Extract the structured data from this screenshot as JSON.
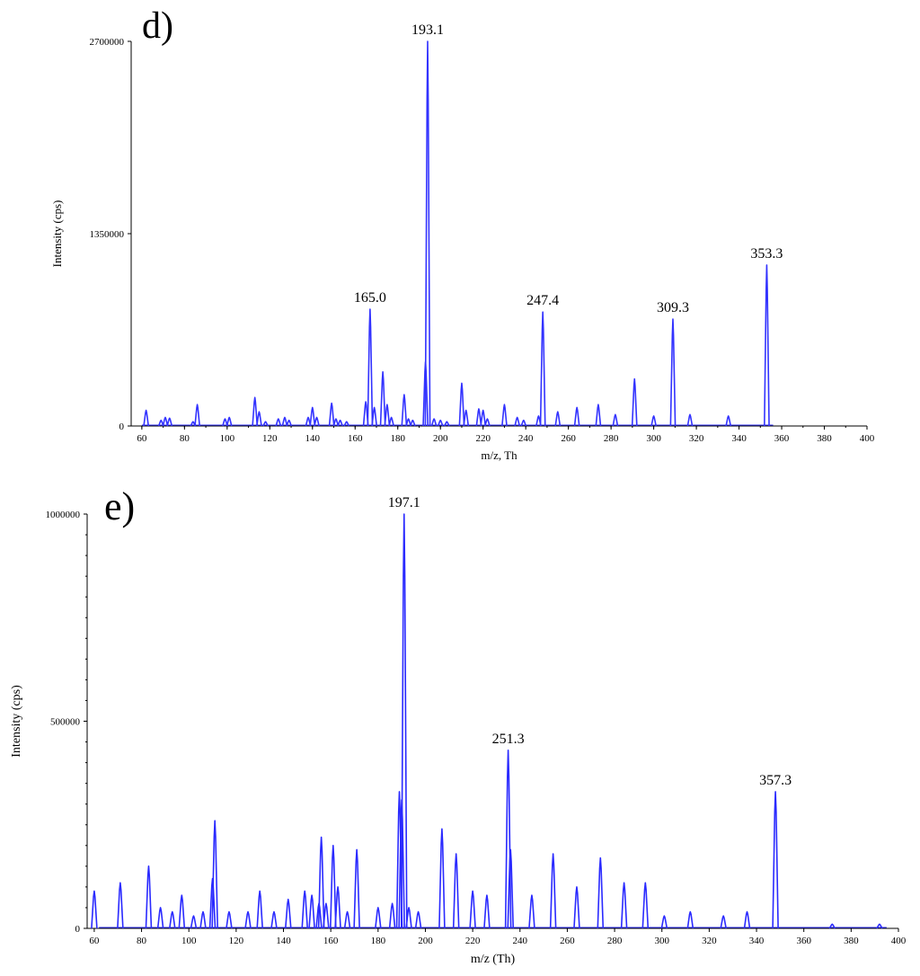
{
  "chart_data": [
    {
      "panel": "d)",
      "type": "line",
      "xlabel": "m/z, Th",
      "ylabel": "Intensity (cps)",
      "xlim": [
        55,
        400
      ],
      "ylim": [
        0,
        2700000
      ],
      "xticks": [
        60,
        80,
        100,
        120,
        140,
        160,
        180,
        200,
        220,
        240,
        260,
        280,
        300,
        320,
        340,
        360,
        380,
        400
      ],
      "yticks": [
        0,
        1350000,
        2700000
      ],
      "ytick_labels": [
        "0",
        "1350000",
        "2700000"
      ],
      "color": "#3333ff",
      "peaks": [
        [
          62,
          110000
        ],
        [
          69,
          40000
        ],
        [
          71,
          60000
        ],
        [
          73,
          55000
        ],
        [
          86,
          150000
        ],
        [
          84,
          30000
        ],
        [
          99,
          50000
        ],
        [
          101,
          60000
        ],
        [
          113,
          200000
        ],
        [
          115,
          100000
        ],
        [
          118,
          30000
        ],
        [
          124,
          50000
        ],
        [
          127,
          60000
        ],
        [
          129,
          40000
        ],
        [
          138,
          60000
        ],
        [
          140,
          130000
        ],
        [
          142,
          60000
        ],
        [
          149,
          160000
        ],
        [
          151,
          50000
        ],
        [
          153,
          40000
        ],
        [
          156,
          30000
        ],
        [
          165,
          170000
        ],
        [
          167,
          820000
        ],
        [
          169,
          130000
        ],
        [
          173,
          380000
        ],
        [
          175,
          150000
        ],
        [
          177,
          60000
        ],
        [
          183,
          220000
        ],
        [
          185,
          50000
        ],
        [
          187,
          40000
        ],
        [
          193,
          450000
        ],
        [
          194,
          2700000
        ],
        [
          197,
          50000
        ],
        [
          200,
          40000
        ],
        [
          203,
          30000
        ],
        [
          210,
          300000
        ],
        [
          212,
          110000
        ],
        [
          218,
          120000
        ],
        [
          220,
          110000
        ],
        [
          222,
          50000
        ],
        [
          230,
          150000
        ],
        [
          236,
          60000
        ],
        [
          239,
          40000
        ],
        [
          246,
          70000
        ],
        [
          248,
          800000
        ],
        [
          255,
          100000
        ],
        [
          264,
          130000
        ],
        [
          274,
          150000
        ],
        [
          282,
          80000
        ],
        [
          291,
          330000
        ],
        [
          300,
          70000
        ],
        [
          309,
          750000
        ],
        [
          317,
          80000
        ],
        [
          335,
          70000
        ],
        [
          353,
          1130000
        ]
      ],
      "annotations": [
        {
          "text": "165.0",
          "x": 167,
          "y": 820000
        },
        {
          "text": "193.1",
          "x": 194,
          "y": 2700000
        },
        {
          "text": "247.4",
          "x": 248,
          "y": 800000
        },
        {
          "text": "309.3",
          "x": 309,
          "y": 750000
        },
        {
          "text": "353.3",
          "x": 353,
          "y": 1130000
        }
      ],
      "grid": false
    },
    {
      "panel": "e)",
      "type": "line",
      "xlabel": "m/z (Th)",
      "ylabel": "Intensity (cps)",
      "xlim": [
        57,
        400
      ],
      "ylim": [
        0,
        1000000
      ],
      "xticks": [
        60,
        80,
        100,
        120,
        140,
        160,
        180,
        200,
        220,
        240,
        260,
        280,
        300,
        320,
        340,
        360,
        380,
        400
      ],
      "xtick_labels": [
        "60",
        "80",
        "100",
        "120",
        "140",
        "160",
        "180",
        "200",
        "220",
        "240",
        "260",
        "280",
        "300",
        "320",
        "340",
        "360",
        "380",
        "400"
      ],
      "yticks": [
        0,
        500000,
        1000000
      ],
      "ytick_labels": [
        "0",
        "500000",
        "1000000"
      ],
      "color": "#2a2aff",
      "peaks": [
        [
          60,
          90000
        ],
        [
          71,
          110000
        ],
        [
          83,
          150000
        ],
        [
          88,
          50000
        ],
        [
          93,
          40000
        ],
        [
          97,
          80000
        ],
        [
          102,
          30000
        ],
        [
          106,
          40000
        ],
        [
          110,
          120000
        ],
        [
          111,
          260000
        ],
        [
          117,
          40000
        ],
        [
          125,
          40000
        ],
        [
          130,
          90000
        ],
        [
          136,
          40000
        ],
        [
          142,
          70000
        ],
        [
          149,
          90000
        ],
        [
          152,
          80000
        ],
        [
          155,
          60000
        ],
        [
          156,
          220000
        ],
        [
          158,
          60000
        ],
        [
          161,
          200000
        ],
        [
          163,
          100000
        ],
        [
          167,
          40000
        ],
        [
          171,
          190000
        ],
        [
          180,
          50000
        ],
        [
          186,
          60000
        ],
        [
          189,
          330000
        ],
        [
          190,
          310000
        ],
        [
          191,
          1000000
        ],
        [
          193,
          50000
        ],
        [
          197,
          40000
        ],
        [
          207,
          240000
        ],
        [
          213,
          180000
        ],
        [
          220,
          90000
        ],
        [
          226,
          80000
        ],
        [
          235,
          430000
        ],
        [
          236,
          190000
        ],
        [
          245,
          80000
        ],
        [
          254,
          180000
        ],
        [
          264,
          100000
        ],
        [
          274,
          170000
        ],
        [
          284,
          110000
        ],
        [
          293,
          110000
        ],
        [
          301,
          30000
        ],
        [
          312,
          40000
        ],
        [
          326,
          30000
        ],
        [
          336,
          40000
        ],
        [
          348,
          330000
        ],
        [
          372,
          10000
        ],
        [
          392,
          10000
        ]
      ],
      "annotations": [
        {
          "text": "197.1",
          "x": 191,
          "y": 1000000
        },
        {
          "text": "251.3",
          "x": 235,
          "y": 430000
        },
        {
          "text": "357.3",
          "x": 348,
          "y": 330000
        }
      ],
      "grid": false
    }
  ],
  "figure": {
    "panel_d_label": "d)",
    "panel_e_label": "e)"
  }
}
